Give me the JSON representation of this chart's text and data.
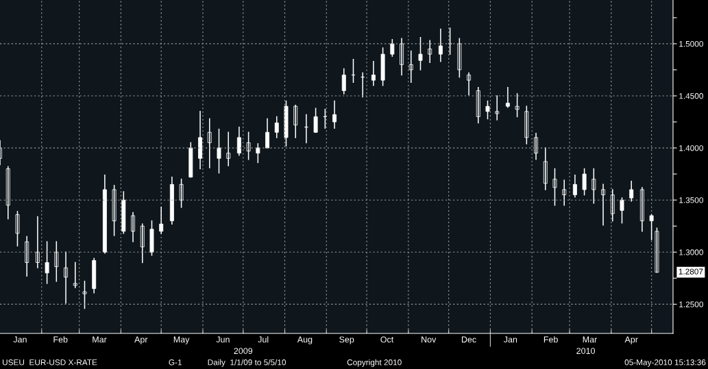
{
  "chart_data": {
    "type": "candlestick",
    "x": [
      "2009-01-01",
      "2009-01-07",
      "2009-01-14",
      "2009-01-21",
      "2009-01-29",
      "2009-02-05",
      "2009-02-12",
      "2009-02-19",
      "2009-02-26",
      "2009-03-05",
      "2009-03-12",
      "2009-03-20",
      "2009-03-27",
      "2009-04-03",
      "2009-04-10",
      "2009-04-17",
      "2009-04-24",
      "2009-05-01",
      "2009-05-09",
      "2009-05-16",
      "2009-05-23",
      "2009-05-30",
      "2009-06-06",
      "2009-06-13",
      "2009-06-20",
      "2009-06-28",
      "2009-07-05",
      "2009-07-12",
      "2009-07-19",
      "2009-07-26",
      "2009-08-02",
      "2009-08-09",
      "2009-08-17",
      "2009-08-24",
      "2009-08-31",
      "2009-09-07",
      "2009-09-14",
      "2009-09-21",
      "2009-09-28",
      "2009-10-06",
      "2009-10-13",
      "2009-10-20",
      "2009-10-27",
      "2009-11-03",
      "2009-11-10",
      "2009-11-17",
      "2009-11-25",
      "2009-12-02",
      "2009-12-09",
      "2009-12-16",
      "2009-12-23",
      "2009-12-30",
      "2010-01-06",
      "2010-01-14",
      "2010-01-21",
      "2010-01-28",
      "2010-02-04",
      "2010-02-11",
      "2010-02-18",
      "2010-02-25",
      "2010-03-05",
      "2010-03-12",
      "2010-03-19",
      "2010-03-26",
      "2010-04-02",
      "2010-04-09",
      "2010-04-16",
      "2010-04-24",
      "2010-05-01",
      "2010-05-05"
    ],
    "ohlc": [
      [
        1.4,
        1.407,
        1.384,
        1.39
      ],
      [
        1.38,
        1.382,
        1.332,
        1.345
      ],
      [
        1.336,
        1.339,
        1.306,
        1.318
      ],
      [
        1.31,
        1.315,
        1.277,
        1.29
      ],
      [
        1.3,
        1.334,
        1.285,
        1.29
      ],
      [
        1.28,
        1.31,
        1.27,
        1.29
      ],
      [
        1.3,
        1.31,
        1.272,
        1.286
      ],
      [
        1.285,
        1.3,
        1.251,
        1.276
      ],
      [
        1.27,
        1.29,
        1.266,
        1.268
      ],
      [
        1.262,
        1.272,
        1.246,
        1.26
      ],
      [
        1.265,
        1.294,
        1.261,
        1.292
      ],
      [
        1.3,
        1.374,
        1.299,
        1.36
      ],
      [
        1.36,
        1.364,
        1.316,
        1.33
      ],
      [
        1.32,
        1.358,
        1.318,
        1.35
      ],
      [
        1.335,
        1.338,
        1.31,
        1.32
      ],
      [
        1.325,
        1.327,
        1.29,
        1.305
      ],
      [
        1.3,
        1.33,
        1.297,
        1.322
      ],
      [
        1.32,
        1.343,
        1.318,
        1.327
      ],
      [
        1.33,
        1.372,
        1.327,
        1.365
      ],
      [
        1.365,
        1.37,
        1.343,
        1.35
      ],
      [
        1.372,
        1.405,
        1.372,
        1.4
      ],
      [
        1.39,
        1.435,
        1.38,
        1.41
      ],
      [
        1.415,
        1.428,
        1.381,
        1.405
      ],
      [
        1.39,
        1.418,
        1.376,
        1.4
      ],
      [
        1.395,
        1.415,
        1.383,
        1.39
      ],
      [
        1.395,
        1.42,
        1.393,
        1.41
      ],
      [
        1.405,
        1.415,
        1.389,
        1.397
      ],
      [
        1.395,
        1.404,
        1.386,
        1.4
      ],
      [
        1.4,
        1.428,
        1.4,
        1.415
      ],
      [
        1.415,
        1.43,
        1.41,
        1.424
      ],
      [
        1.41,
        1.445,
        1.402,
        1.44
      ],
      [
        1.44,
        1.441,
        1.41,
        1.422
      ],
      [
        1.42,
        1.432,
        1.405,
        1.42
      ],
      [
        1.415,
        1.438,
        1.415,
        1.43
      ],
      [
        1.43,
        1.437,
        1.419,
        1.43
      ],
      [
        1.425,
        1.445,
        1.419,
        1.432
      ],
      [
        1.455,
        1.476,
        1.452,
        1.47
      ],
      [
        1.47,
        1.485,
        1.463,
        1.47
      ],
      [
        1.468,
        1.472,
        1.449,
        1.468
      ],
      [
        1.465,
        1.483,
        1.46,
        1.47
      ],
      [
        1.465,
        1.496,
        1.46,
        1.49
      ],
      [
        1.49,
        1.504,
        1.488,
        1.5
      ],
      [
        1.5,
        1.505,
        1.47,
        1.48
      ],
      [
        1.48,
        1.493,
        1.463,
        1.475
      ],
      [
        1.484,
        1.506,
        1.475,
        1.49
      ],
      [
        1.495,
        1.503,
        1.482,
        1.49
      ],
      [
        1.49,
        1.514,
        1.483,
        1.498
      ],
      [
        1.5,
        1.515,
        1.49,
        1.5
      ],
      [
        1.5,
        1.505,
        1.468,
        1.475
      ],
      [
        1.47,
        1.472,
        1.451,
        1.465
      ],
      [
        1.455,
        1.458,
        1.424,
        1.43
      ],
      [
        1.435,
        1.445,
        1.428,
        1.44
      ],
      [
        1.435,
        1.45,
        1.427,
        1.433
      ],
      [
        1.44,
        1.458,
        1.439,
        1.443
      ],
      [
        1.44,
        1.452,
        1.43,
        1.437
      ],
      [
        1.435,
        1.44,
        1.404,
        1.41
      ],
      [
        1.41,
        1.414,
        1.389,
        1.395
      ],
      [
        1.387,
        1.4,
        1.36,
        1.366
      ],
      [
        1.37,
        1.38,
        1.345,
        1.362
      ],
      [
        1.36,
        1.369,
        1.345,
        1.355
      ],
      [
        1.355,
        1.374,
        1.353,
        1.365
      ],
      [
        1.36,
        1.38,
        1.355,
        1.375
      ],
      [
        1.37,
        1.38,
        1.347,
        1.36
      ],
      [
        1.36,
        1.365,
        1.326,
        1.355
      ],
      [
        1.355,
        1.36,
        1.33,
        1.337
      ],
      [
        1.34,
        1.352,
        1.328,
        1.35
      ],
      [
        1.352,
        1.368,
        1.349,
        1.36
      ],
      [
        1.36,
        1.362,
        1.32,
        1.33
      ],
      [
        1.33,
        1.336,
        1.312,
        1.335
      ],
      [
        1.32,
        1.323,
        1.2807,
        1.2807
      ]
    ],
    "color": "#ffffff",
    "xlim": [
      "2009-01-01",
      "2010-05-17"
    ],
    "xticks": [
      {
        "value": "2009-01-16",
        "label": "Jan"
      },
      {
        "value": "2009-02-01",
        "label": null
      },
      {
        "value": "2009-02-15",
        "label": "Feb"
      },
      {
        "value": "2009-03-01",
        "label": null
      },
      {
        "value": "2009-03-16",
        "label": "Mar"
      },
      {
        "value": "2009-04-01",
        "label": null
      },
      {
        "value": "2009-04-16",
        "label": "Apr"
      },
      {
        "value": "2009-05-01",
        "label": null
      },
      {
        "value": "2009-05-16",
        "label": "May"
      },
      {
        "value": "2009-06-01",
        "label": null
      },
      {
        "value": "2009-06-16",
        "label": "Jun"
      },
      {
        "value": "2009-07-01",
        "label": null
      },
      {
        "value": "2009-07-16",
        "label": "Jul"
      },
      {
        "value": "2009-08-01",
        "label": null
      },
      {
        "value": "2009-08-16",
        "label": "Aug"
      },
      {
        "value": "2009-09-01",
        "label": null
      },
      {
        "value": "2009-09-16",
        "label": "Sep"
      },
      {
        "value": "2009-10-01",
        "label": null
      },
      {
        "value": "2009-10-16",
        "label": "Oct"
      },
      {
        "value": "2009-11-01",
        "label": null
      },
      {
        "value": "2009-11-16",
        "label": "Nov"
      },
      {
        "value": "2009-12-01",
        "label": null
      },
      {
        "value": "2009-12-16",
        "label": "Dec"
      },
      {
        "value": "2010-01-01",
        "label": null
      },
      {
        "value": "2010-01-16",
        "label": "Jan"
      },
      {
        "value": "2010-02-01",
        "label": null
      },
      {
        "value": "2010-02-15",
        "label": "Feb"
      },
      {
        "value": "2010-03-01",
        "label": null
      },
      {
        "value": "2010-03-16",
        "label": "Mar"
      },
      {
        "value": "2010-04-01",
        "label": null
      },
      {
        "value": "2010-04-16",
        "label": "Apr"
      },
      {
        "value": "2010-05-01",
        "label": null
      }
    ],
    "x2lim": [
      "2009-01-01",
      "2010-05-17"
    ],
    "x2ticks": [
      {
        "value": "2009-07-01",
        "label": "2009"
      },
      {
        "value": "2010-01-01",
        "label": null
      },
      {
        "value": "2010-03-13",
        "label": "2010"
      }
    ],
    "ylim": [
      1.222,
      1.542
    ],
    "yticks": [
      {
        "value": 1.25,
        "label": "1.2500"
      },
      {
        "value": 1.275,
        "label": null
      },
      {
        "value": 1.3,
        "label": "1.3000"
      },
      {
        "value": 1.325,
        "label": null
      },
      {
        "value": 1.35,
        "label": "1.3500"
      },
      {
        "value": 1.375,
        "label": null
      },
      {
        "value": 1.4,
        "label": "1.4000"
      },
      {
        "value": 1.425,
        "label": null
      },
      {
        "value": 1.45,
        "label": "1.4500"
      },
      {
        "value": 1.475,
        "label": null
      },
      {
        "value": 1.5,
        "label": "1.5000"
      },
      {
        "value": 1.525,
        "label": null
      }
    ],
    "grid": true,
    "annotations": [
      {
        "text": "1.2807",
        "x": "2010-05-05",
        "y": 1.2807
      },
      "USEU  EUR-USD X-RATE",
      "G-1",
      "Daily  1/1/09 to 5/5/10",
      "Copyright 2010",
      "05-May-2010 15:13:36"
    ]
  }
}
